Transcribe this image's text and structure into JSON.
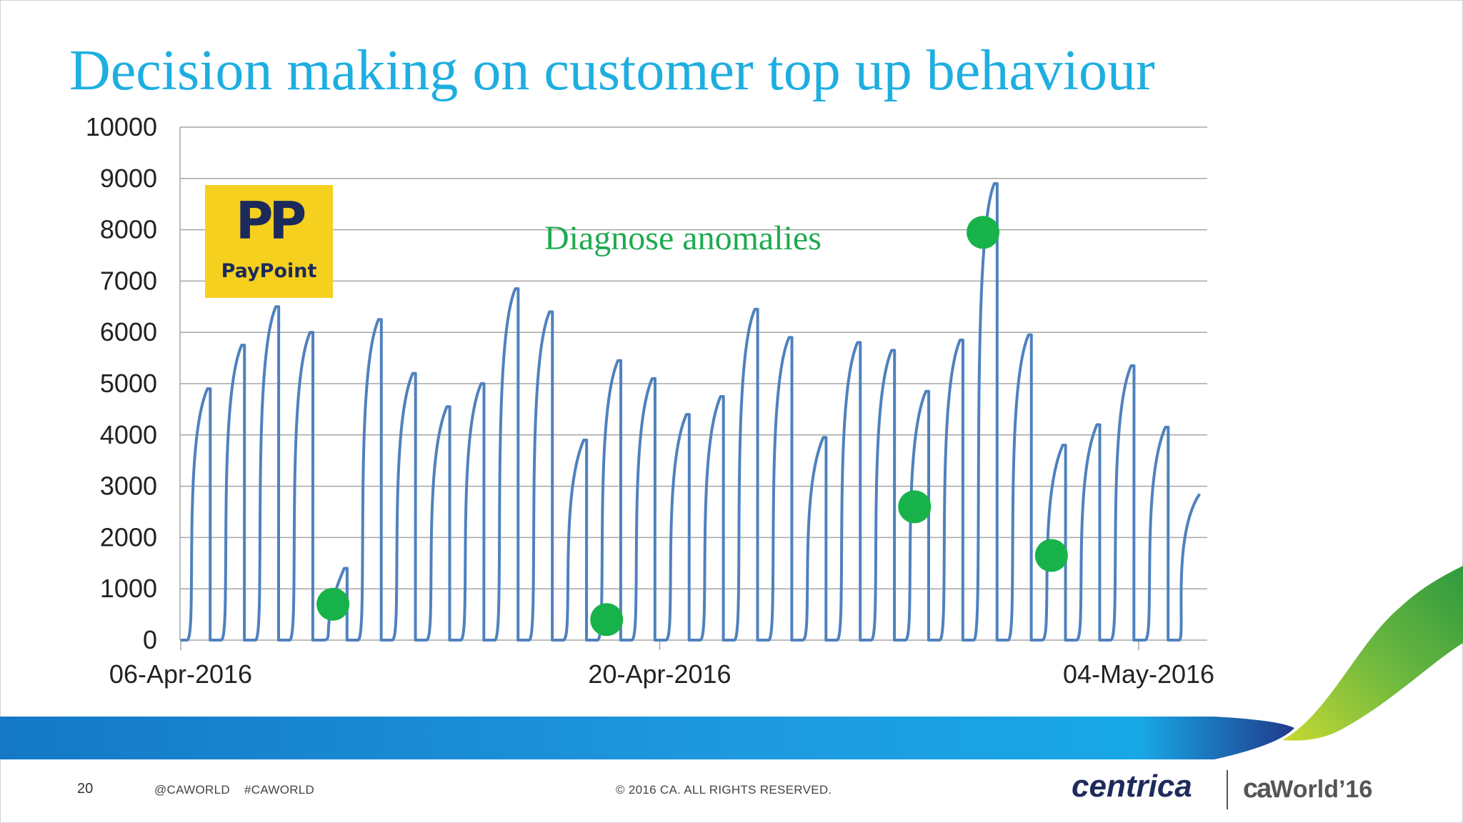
{
  "slide": {
    "title": "Decision making on customer top up behaviour",
    "annotation": "Diagnose anomalies",
    "page_number": "20",
    "social": "@CAWORLD    #CAWORLD",
    "copyright": "© 2016 CA. ALL RIGHTS RESERVED.",
    "logo_centrica": "centrica",
    "logo_caworld_ca": "ca",
    "logo_caworld_text": "World’16",
    "paypoint_mark": "PP",
    "paypoint_name": "PayPoint"
  },
  "colors": {
    "title": "#1eaee0",
    "line": "#4f81bd",
    "marker": "#17b34a",
    "grid": "#a6a6a6",
    "band_blue": "#1a8ad4",
    "swoosh_green": "#5ab043",
    "paypoint_yellow": "#f5d01f",
    "paypoint_navy": "#1b2a5a"
  },
  "chart_data": {
    "type": "line",
    "title": "",
    "xlabel": "",
    "ylabel": "",
    "ylim": [
      0,
      10000
    ],
    "yticks": [
      0,
      1000,
      2000,
      3000,
      4000,
      5000,
      6000,
      7000,
      8000,
      9000,
      10000
    ],
    "xticks": [
      "06-Apr-2016",
      "20-Apr-2016",
      "04-May-2016"
    ],
    "grid": "horizontal",
    "series": [
      {
        "daily_peaks": [
          {
            "date": "2016-04-06",
            "peak": 4900
          },
          {
            "date": "2016-04-07",
            "peak": 5750
          },
          {
            "date": "2016-04-08",
            "peak": 6500
          },
          {
            "date": "2016-04-09",
            "peak": 6000
          },
          {
            "date": "2016-04-10",
            "peak": 1400
          },
          {
            "date": "2016-04-11",
            "peak": 6250
          },
          {
            "date": "2016-04-12",
            "peak": 5200
          },
          {
            "date": "2016-04-13",
            "peak": 4550
          },
          {
            "date": "2016-04-14",
            "peak": 5000
          },
          {
            "date": "2016-04-15",
            "peak": 6850
          },
          {
            "date": "2016-04-16",
            "peak": 6400
          },
          {
            "date": "2016-04-17",
            "peak": 3900
          },
          {
            "date": "2016-04-18",
            "peak": 5450
          },
          {
            "date": "2016-04-19",
            "peak": 5100
          },
          {
            "date": "2016-04-20",
            "peak": 4400
          },
          {
            "date": "2016-04-21",
            "peak": 4750
          },
          {
            "date": "2016-04-22",
            "peak": 6450
          },
          {
            "date": "2016-04-23",
            "peak": 5900
          },
          {
            "date": "2016-04-24",
            "peak": 3950
          },
          {
            "date": "2016-04-25",
            "peak": 5800
          },
          {
            "date": "2016-04-26",
            "peak": 5650
          },
          {
            "date": "2016-04-27",
            "peak": 4850
          },
          {
            "date": "2016-04-28",
            "peak": 5850
          },
          {
            "date": "2016-04-29",
            "peak": 8900
          },
          {
            "date": "2016-04-30",
            "peak": 5950
          },
          {
            "date": "2016-05-01",
            "peak": 3800
          },
          {
            "date": "2016-05-02",
            "peak": 4200
          },
          {
            "date": "2016-05-03",
            "peak": 5350
          },
          {
            "date": "2016-05-04",
            "peak": 4150
          },
          {
            "date": "2016-05-05",
            "peak": 2850
          }
        ]
      }
    ],
    "anomalies": [
      {
        "date": "2016-04-10",
        "value": 700
      },
      {
        "date": "2016-04-18",
        "value": 400
      },
      {
        "date": "2016-04-27",
        "value": 2600
      },
      {
        "date": "2016-04-29",
        "value": 7950
      },
      {
        "date": "2016-05-01",
        "value": 1650
      }
    ]
  }
}
